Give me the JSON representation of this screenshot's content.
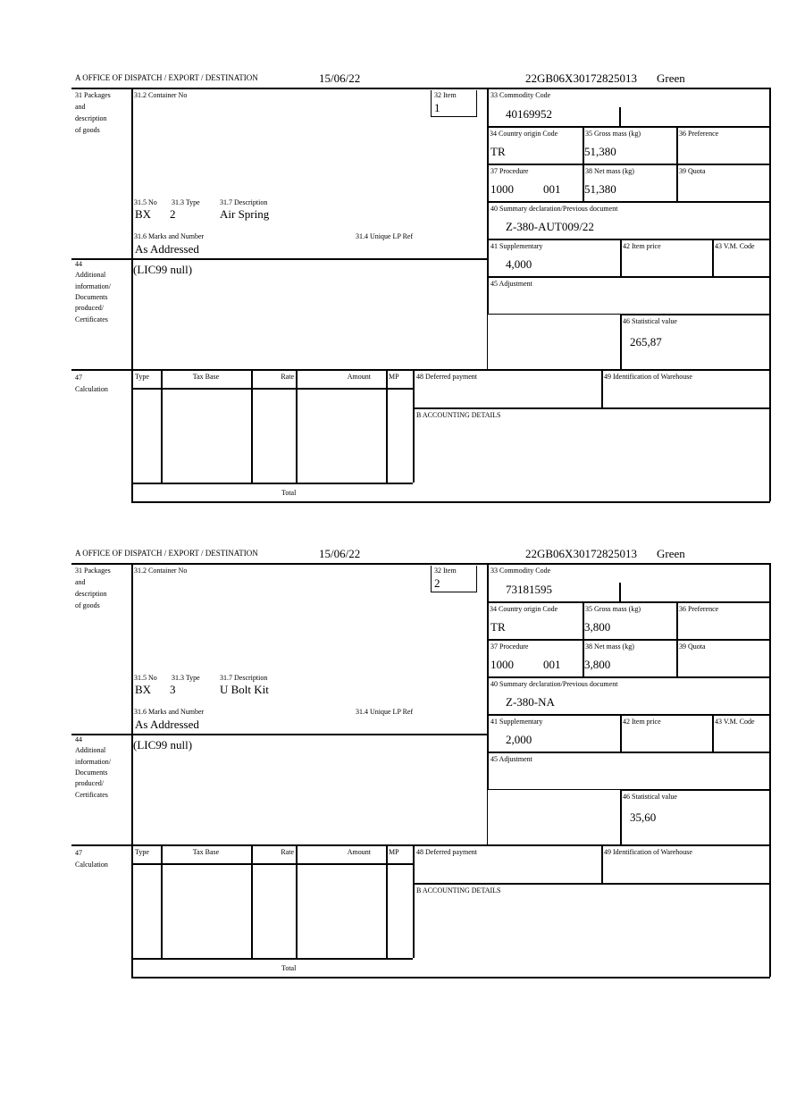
{
  "labels": {
    "office": "A  OFFICE OF DISPATCH / EXPORT / DESTINATION",
    "packages": [
      "31 Packages",
      "and",
      "description",
      "of goods"
    ],
    "container_no": "31.2 Container No",
    "item": "32 Item",
    "no": "31.5 No",
    "type": "31.3 Type",
    "description": "31.7 Description",
    "marks": "31.6 Marks and Number",
    "unique_lp": "31.4 Unique LP Ref",
    "additional": [
      "44",
      "Additional",
      "information/",
      "Documents",
      "produced/",
      "Certificates"
    ],
    "commodity_code": "33 Commodity Code",
    "country_origin": "34 Country origin Code",
    "gross_mass": "35 Gross mass (kg)",
    "preference": "36 Preference",
    "procedure": "37 Procedure",
    "net_mass": "38 Net mass (kg)",
    "quota": "39 Quota",
    "summary_decl": "40 Summary declaration/Previous document",
    "supplementary": "41 Supplementary",
    "item_price": "42 Item price",
    "vm_code": "43 V.M. Code",
    "adjustment": "45 Adjustment",
    "stat_value": "46 Statistical value",
    "calc": [
      "47",
      "Calculation"
    ],
    "calc_cols": [
      "Type",
      "Tax Base",
      "Rate",
      "Amount",
      "MP"
    ],
    "total": "Total",
    "deferred": "48 Deferred payment",
    "warehouse": "49 Identification of Warehouse",
    "accounting": "B ACCOUNTING DETAILS"
  },
  "forms": [
    {
      "date": "15/06/22",
      "reference": "22GB06X30172825013",
      "status": "Green",
      "item": "1",
      "no": "BX",
      "type": "2",
      "description": "Air Spring",
      "marks": "As Addressed",
      "additional_info": "(LIC99 null)",
      "commodity_code": "40169952",
      "country_origin": "TR",
      "gross_mass": "51,380",
      "procedure": "1000",
      "procedure_extra": "001",
      "net_mass": "51,380",
      "summary_decl": "Z-380-AUT009/22",
      "supplementary": "4,000",
      "stat_value": "265,87"
    },
    {
      "date": "15/06/22",
      "reference": "22GB06X30172825013",
      "status": "Green",
      "item": "2",
      "no": "BX",
      "type": "3",
      "description": "U Bolt Kit",
      "marks": "As Addressed",
      "additional_info": "(LIC99 null)",
      "commodity_code": "73181595",
      "country_origin": "TR",
      "gross_mass": "3,800",
      "procedure": "1000",
      "procedure_extra": "001",
      "net_mass": "3,800",
      "summary_decl": "Z-380-NA",
      "supplementary": "2,000",
      "stat_value": "35,60"
    }
  ]
}
